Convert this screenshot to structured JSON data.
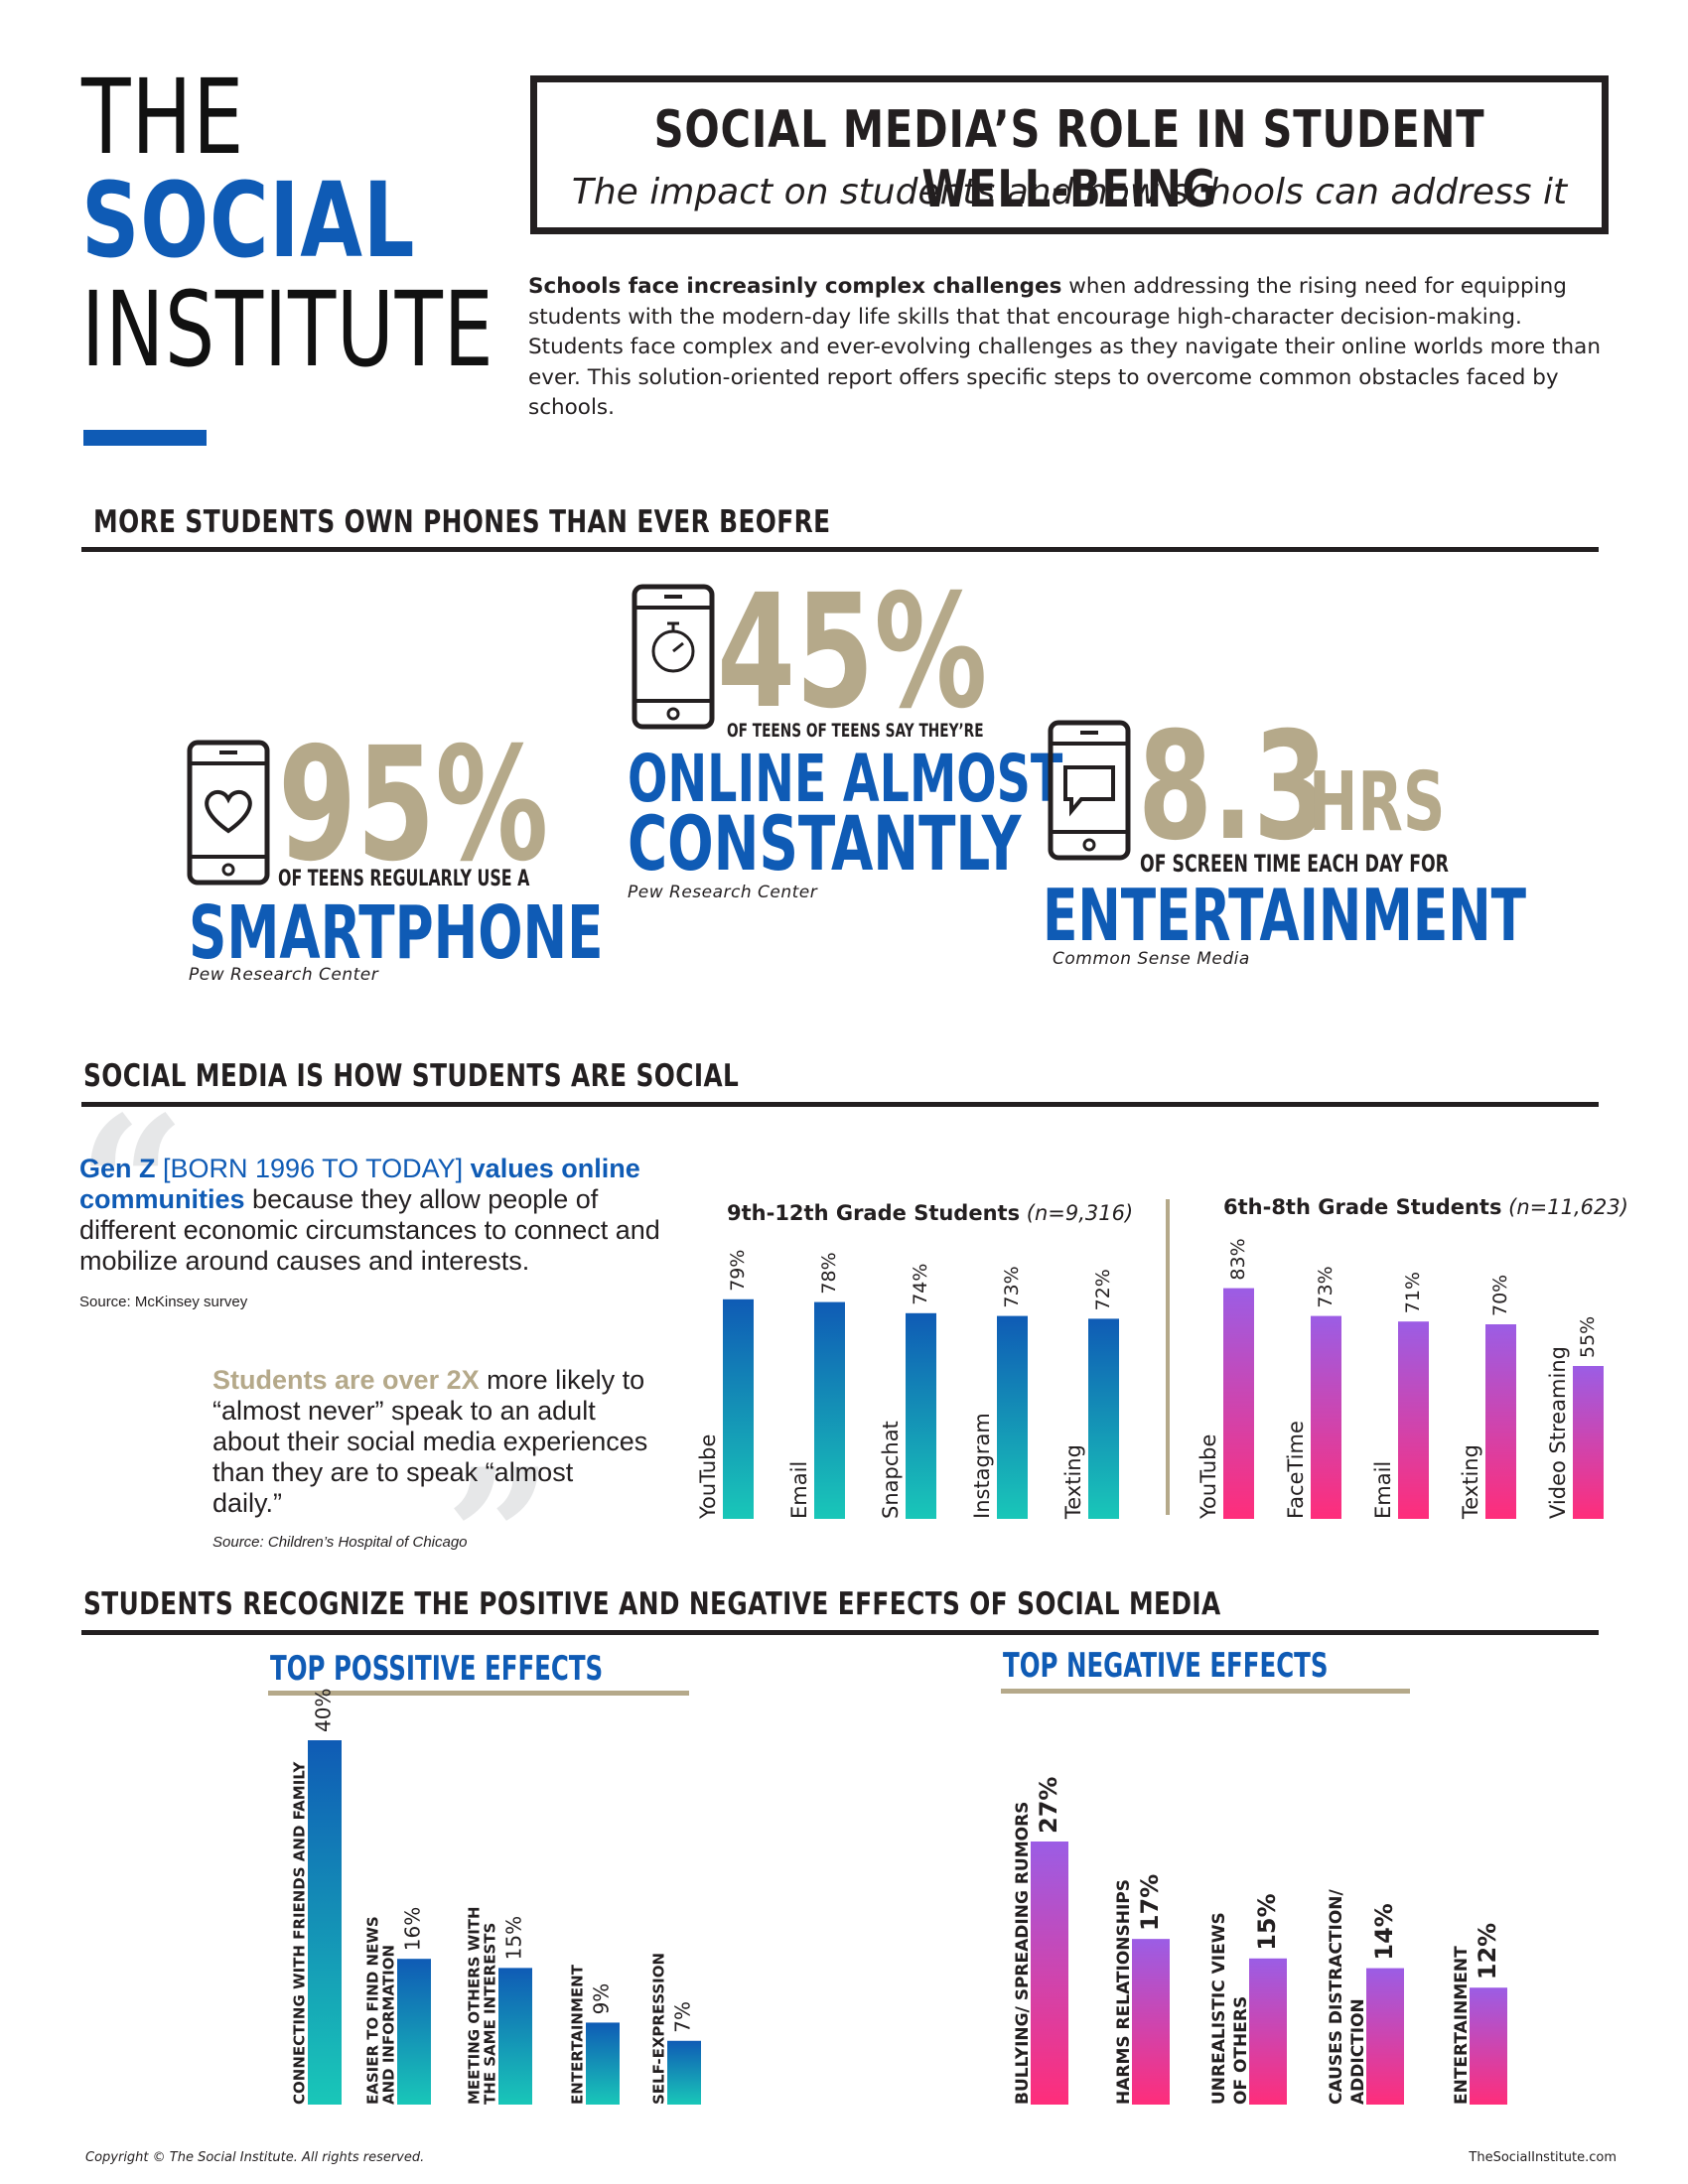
{
  "logo": {
    "line1": "THE",
    "line2": "SOCIAL",
    "line3": "INSTITUTE"
  },
  "header": {
    "title": "SOCIAL MEDIA’S ROLE IN STUDENT WELL-BEING",
    "subtitle": "The impact on students and how schools can address it"
  },
  "intro": {
    "bold": "Schools face increasinly complex challenges",
    "rest": " when addressing the rising need for equipping students with the modern-day life skills that that encourage high-character decision-making. Students face complex and ever-evolving challenges as they navigate their online worlds more than ever. This solution-oriented report offers specific steps to overcome common obstacles faced by schools."
  },
  "section1": {
    "title": "MORE STUDENTS OWN PHONES THAN EVER BEOFRE",
    "stat1": {
      "value": "95%",
      "caption": "OF TEENS REGULARLY USE A",
      "highlight": "SMARTPHONE",
      "source": "Pew Research Center"
    },
    "stat2": {
      "value": "45%",
      "caption": "OF TEENS OF TEENS SAY THEY’RE",
      "highlight1": "ONLINE ALMOST",
      "highlight2": "CONSTANTLY",
      "source": "Pew Research Center"
    },
    "stat3": {
      "value": "8.3",
      "unit": "HRS",
      "caption": "OF SCREEN TIME EACH DAY FOR",
      "highlight": "ENTERTAINMENT",
      "source": "Common Sense Media"
    }
  },
  "section2": {
    "title": "SOCIAL MEDIA IS HOW STUDENTS ARE SOCIAL",
    "quote1": {
      "bold1": "Gen Z",
      "bracket": " [BORN 1996 TO TODAY] ",
      "bold2": "values online communities",
      "rest": " because they allow people of different economic circumstances to connect and mobilize around causes and interests.",
      "source": "Source: McKinsey survey"
    },
    "quote2": {
      "bold": "Students are over 2X",
      "rest": " more likely to “almost never” speak to an adult about their social media experiences than they are to speak “almost daily.”",
      "source": "Source: Children’s Hospital of Chicago"
    }
  },
  "section3": {
    "title": "STUDENTS RECOGNIZE THE POSITIVE AND NEGATIVE EFFECTS OF SOCIAL MEDIA"
  },
  "colors": {
    "blue": "#0f5bb5",
    "gold": "#b5a98a",
    "teal": "#19c7b8",
    "purple": "#9b5de5",
    "pink": "#ff2d7a"
  },
  "chart_data": [
    {
      "type": "bar",
      "title": "9th-12th Grade Students",
      "note": "(n=9,316)",
      "categories": [
        "YouTube",
        "Email",
        "Snapchat",
        "Instagram",
        "Texting"
      ],
      "values": [
        79,
        78,
        74,
        73,
        72
      ],
      "value_labels": [
        "79%",
        "78%",
        "74%",
        "73%",
        "72%"
      ],
      "ylim": [
        0,
        100
      ],
      "gradient": [
        "#0f5bb5",
        "#19c7b8"
      ]
    },
    {
      "type": "bar",
      "title": "6th-8th Grade Students",
      "note": "(n=11,623)",
      "categories": [
        "YouTube",
        "FaceTime",
        "Email",
        "Texting",
        "Video Streaming"
      ],
      "values": [
        83,
        73,
        71,
        70,
        55
      ],
      "value_labels": [
        "83%",
        "73%",
        "71%",
        "70%",
        "55%"
      ],
      "ylim": [
        0,
        100
      ],
      "gradient": [
        "#9b5de5",
        "#ff2d7a"
      ]
    },
    {
      "type": "bar",
      "title": "TOP POSSITIVE EFFECTS",
      "categories": [
        "CONNECTING WITH FRIENDS AND FAMILY",
        "EASIER TO FIND NEWS AND INFORMATION",
        "MEETING OTHERS WITH THE SAME INTERESTS",
        "ENTERTAINMENT",
        "SELF-EXPRESSION"
      ],
      "values": [
        40,
        16,
        15,
        9,
        7
      ],
      "value_labels": [
        "40%",
        "16%",
        "15%",
        "9%",
        "7%"
      ],
      "gradient": [
        "#0f5bb5",
        "#19c7b8"
      ]
    },
    {
      "type": "bar",
      "title": "TOP NEGATIVE EFFECTS",
      "categories": [
        "BULLYING/ SPREADING RUMORS",
        "HARMS RELATIONSHIPS",
        "UNREALISTIC VIEWS OF OTHERS",
        "CAUSES DISTRACTION/ ADDICTION",
        "ENTERTAINMENT"
      ],
      "values": [
        27,
        17,
        15,
        14,
        12
      ],
      "value_labels": [
        "27%",
        "17%",
        "15%",
        "14%",
        "12%"
      ],
      "gradient": [
        "#9b5de5",
        "#ff2d7a"
      ]
    }
  ],
  "footer": {
    "copyright": "Copyright © The Social Institute. All rights reserved.",
    "site": "TheSocialInstitute.com"
  }
}
